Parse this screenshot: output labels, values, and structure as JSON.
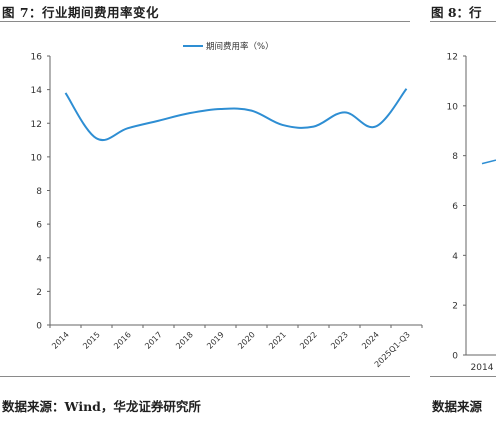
{
  "header": {
    "left_title": "图 7：行业期间费用率变化",
    "right_title": "图 8：行"
  },
  "footer": {
    "left_source": "数据来源：Wind，华龙证券研究所",
    "right_source": "数据来源"
  },
  "chart_data": [
    {
      "type": "line",
      "title": "",
      "xlabel": "",
      "ylabel": "",
      "categories": [
        "2014",
        "2015",
        "2016",
        "2017",
        "2018",
        "2019",
        "2020",
        "2021",
        "2022",
        "2023",
        "2024",
        "2025Q1-Q3"
      ],
      "y_ticks": [
        "16",
        "14",
        "12",
        "10",
        "8",
        "6",
        "4",
        "2",
        "0"
      ],
      "ylim": [
        0,
        16
      ],
      "series": [
        {
          "name": "期间费用率（%）",
          "values": [
            13.8,
            11.1,
            11.7,
            12.15,
            12.6,
            12.85,
            12.75,
            11.9,
            11.8,
            12.65,
            11.8,
            14.05
          ],
          "color": "#2e8ed3"
        }
      ],
      "legend_position": "top-center",
      "grid": false
    },
    {
      "type": "line",
      "partial": true,
      "y_ticks": [
        "12",
        "10",
        "8",
        "6",
        "4",
        "2",
        "0"
      ],
      "ylim": [
        0,
        12
      ],
      "categories": [
        "2014"
      ],
      "series": [
        {
          "values": [
            7.7
          ],
          "color": "#2e8ed3"
        }
      ]
    }
  ]
}
